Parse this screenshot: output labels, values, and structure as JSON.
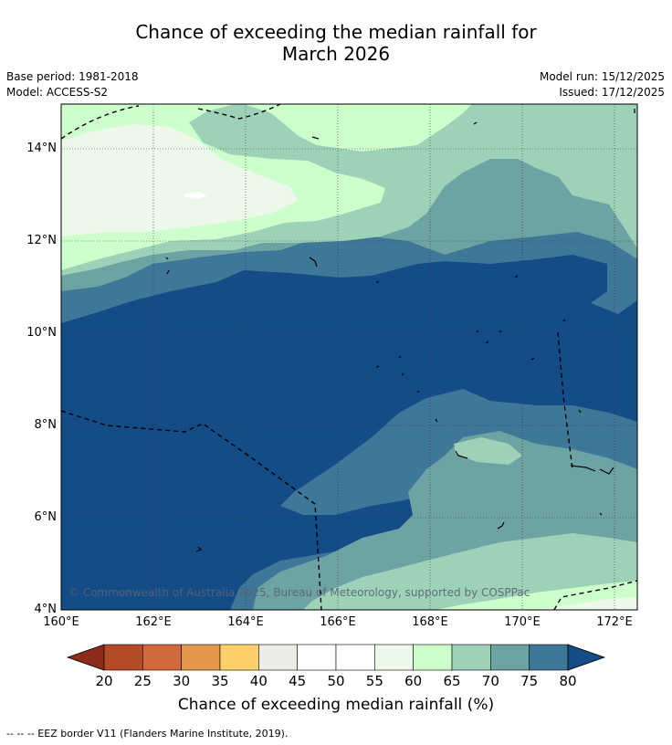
{
  "title_line1": "Chance of exceeding the median rainfall for",
  "title_line2": "March 2026",
  "base_period": "Base period: 1981-2018",
  "model": "Model: ACCESS-S2",
  "model_run": "Model run: 15/12/2025",
  "issued": "Issued: 17/12/2025",
  "copyright": "© Commonwealth of Australia 2025, Bureau of Meteorology, supported by COSPPac",
  "footer": "--  --  -- EEZ border V11 (Flanders Marine Institute, 2019).",
  "map": {
    "lon_ticks": [
      "160°E",
      "162°E",
      "164°E",
      "166°E",
      "168°E",
      "170°E",
      "172°E"
    ],
    "lat_ticks": [
      "14°N",
      "12°N",
      "10°N",
      "8°N",
      "6°N",
      "4°N"
    ]
  },
  "colorbar": {
    "title": "Chance of exceeding median rainfall (%)",
    "labels": [
      "20",
      "25",
      "30",
      "35",
      "40",
      "45",
      "50",
      "55",
      "60",
      "65",
      "70",
      "75",
      "80"
    ],
    "colors": [
      "#8c2d1a",
      "#b54a27",
      "#d2693a",
      "#e3974a",
      "#fdd06a",
      "#ecebe6",
      "#ffffff",
      "#ffffff",
      "#edf7ea",
      "#ccffcc",
      "#9dd1b8",
      "#6da3a3",
      "#3f7799",
      "#134c86"
    ]
  }
}
